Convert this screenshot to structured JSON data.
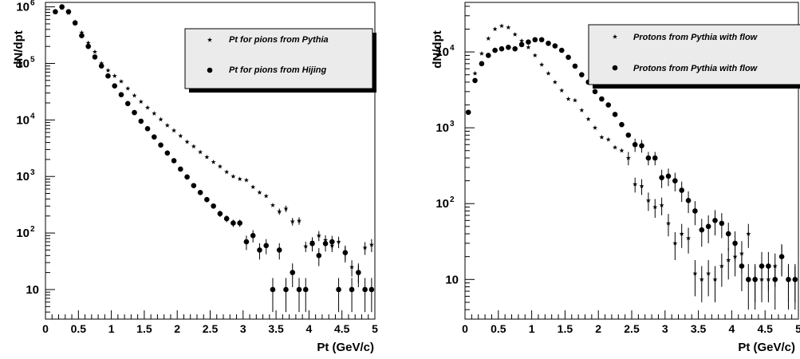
{
  "chart_data": [
    {
      "type": "scatter",
      "y_scale": "log",
      "xlim": [
        0,
        5
      ],
      "ylim": [
        3,
        1200000
      ],
      "xticks": [
        "0",
        "0.5",
        "1",
        "1.5",
        "2",
        "2.5",
        "3",
        "3.5",
        "4",
        "4.5",
        "5"
      ],
      "yticks": [
        {
          "v": 10,
          "label": "10"
        },
        {
          "v": 100,
          "label": "10",
          "exp": "2"
        },
        {
          "v": 1000,
          "label": "10",
          "exp": "3"
        },
        {
          "v": 10000,
          "label": "10",
          "exp": "4"
        },
        {
          "v": 100000,
          "label": "10",
          "exp": "5"
        },
        {
          "v": 1000000,
          "label": "10",
          "exp": "6"
        }
      ],
      "xlabel": "Pt (GeV/c)",
      "ylabel": "dN/dpt",
      "grid": false,
      "legend_position": "top-right",
      "series": [
        {
          "name": "Pt for pions from Pythia",
          "marker": "star",
          "x": [
            0.15,
            0.25,
            0.35,
            0.45,
            0.55,
            0.65,
            0.75,
            0.85,
            0.95,
            1.05,
            1.15,
            1.25,
            1.35,
            1.45,
            1.55,
            1.65,
            1.75,
            1.85,
            1.95,
            2.05,
            2.15,
            2.25,
            2.35,
            2.45,
            2.55,
            2.65,
            2.75,
            2.85,
            2.95,
            3.05,
            3.15,
            3.25,
            3.35,
            3.45,
            3.55,
            3.65,
            3.75,
            3.85,
            3.95,
            4.05,
            4.15,
            4.25,
            4.35,
            4.45,
            4.55,
            4.65,
            4.75,
            4.85,
            4.95
          ],
          "y": [
            800000,
            950000,
            780000,
            540000,
            350000,
            230000,
            160000,
            100000,
            75000,
            60000,
            48000,
            36000,
            27000,
            21000,
            16500,
            13000,
            10200,
            8000,
            6500,
            5200,
            4100,
            3400,
            2700,
            2200,
            1800,
            1500,
            1200,
            1000,
            900,
            860,
            650,
            520,
            450,
            310,
            240,
            270,
            160,
            165,
            58,
            70,
            90,
            75,
            60,
            70,
            45,
            25,
            20,
            55,
            62
          ],
          "yerr": [
            0,
            0,
            0,
            0,
            0,
            0,
            0,
            0,
            0,
            0,
            0,
            0,
            0,
            0,
            0,
            0,
            0,
            0,
            0,
            0,
            0,
            0,
            0,
            0,
            0,
            0,
            0,
            0,
            0,
            0,
            0,
            0,
            0,
            0,
            30,
            35,
            25,
            25,
            12,
            14,
            18,
            16,
            14,
            16,
            12,
            8,
            7,
            14,
            16
          ]
        },
        {
          "name": "Pt for pions from Hijing",
          "marker": "circle",
          "x": [
            0.15,
            0.25,
            0.35,
            0.45,
            0.55,
            0.65,
            0.75,
            0.85,
            0.95,
            1.05,
            1.15,
            1.25,
            1.35,
            1.45,
            1.55,
            1.65,
            1.75,
            1.85,
            1.95,
            2.05,
            2.15,
            2.25,
            2.35,
            2.45,
            2.55,
            2.65,
            2.75,
            2.85,
            2.95,
            3.05,
            3.15,
            3.25,
            3.35,
            3.45,
            3.55,
            3.65,
            3.75,
            3.85,
            3.95,
            4.05,
            4.15,
            4.25,
            4.35,
            4.45,
            4.55,
            4.65,
            4.75,
            4.85,
            4.95
          ],
          "y": [
            820000,
            1000000,
            820000,
            520000,
            310000,
            200000,
            130000,
            90000,
            60000,
            40000,
            28000,
            19500,
            13500,
            9500,
            7000,
            5000,
            3600,
            2600,
            1900,
            1350,
            980,
            690,
            520,
            390,
            300,
            220,
            180,
            150,
            150,
            70,
            90,
            50,
            60,
            10,
            50,
            10,
            20,
            10,
            10,
            65,
            40,
            65,
            70,
            10,
            45,
            10,
            20,
            10,
            10
          ],
          "yerr": [
            0,
            0,
            0,
            0,
            0,
            0,
            0,
            0,
            0,
            0,
            0,
            0,
            0,
            0,
            0,
            0,
            0,
            0,
            0,
            0,
            0,
            0,
            0,
            40,
            30,
            28,
            25,
            22,
            22,
            20,
            22,
            16,
            18,
            6,
            16,
            6,
            9,
            6,
            6,
            18,
            14,
            18,
            19,
            6,
            15,
            6,
            9,
            6,
            6
          ]
        }
      ]
    },
    {
      "type": "scatter",
      "y_scale": "log",
      "xlim": [
        0,
        5
      ],
      "ylim": [
        3,
        45000
      ],
      "xticks": [
        "0",
        "0.5",
        "1",
        "1.5",
        "2",
        "2.5",
        "3",
        "3.5",
        "4",
        "4.5",
        "5"
      ],
      "yticks": [
        {
          "v": 10,
          "label": "10"
        },
        {
          "v": 100,
          "label": "10",
          "exp": "2"
        },
        {
          "v": 1000,
          "label": "10",
          "exp": "3"
        },
        {
          "v": 10000,
          "label": "10",
          "exp": "4"
        }
      ],
      "xlabel": "Pt (GeV/c)",
      "ylabel": "dN/dpt",
      "grid": false,
      "legend_position": "top-right",
      "series": [
        {
          "name": "Protons from  Pythia with flow",
          "marker": "star",
          "x": [
            0.05,
            0.15,
            0.25,
            0.35,
            0.45,
            0.55,
            0.65,
            0.75,
            0.85,
            0.95,
            1.05,
            1.15,
            1.25,
            1.35,
            1.45,
            1.55,
            1.65,
            1.75,
            1.85,
            1.95,
            2.05,
            2.15,
            2.25,
            2.35,
            2.45,
            2.55,
            2.65,
            2.75,
            2.85,
            2.95,
            3.05,
            3.15,
            3.25,
            3.35,
            3.45,
            3.55,
            3.65,
            3.75,
            3.85,
            3.95,
            4.05,
            4.15,
            4.25,
            4.35,
            4.45,
            4.55,
            4.65,
            4.75,
            4.85,
            4.95
          ],
          "y": [
            1600,
            5200,
            9500,
            15000,
            20000,
            22000,
            21000,
            17000,
            14000,
            11500,
            9000,
            6800,
            5200,
            4000,
            3100,
            2400,
            2300,
            1700,
            1300,
            1000,
            750,
            700,
            550,
            500,
            400,
            180,
            170,
            110,
            90,
            95,
            55,
            30,
            40,
            35,
            12,
            10,
            12,
            10,
            15,
            18,
            20,
            22,
            40,
            10,
            10,
            10,
            15,
            20,
            10,
            10
          ],
          "yerr": [
            0,
            0,
            0,
            0,
            0,
            0,
            0,
            0,
            0,
            0,
            0,
            0,
            0,
            0,
            0,
            0,
            0,
            0,
            0,
            0,
            0,
            0,
            0,
            0,
            80,
            40,
            40,
            30,
            25,
            25,
            18,
            12,
            14,
            13,
            6,
            5,
            6,
            5,
            7,
            8,
            9,
            10,
            14,
            5,
            5,
            5,
            7,
            9,
            5,
            5
          ]
        },
        {
          "name": "Protons from Pythia with flow",
          "marker": "circle",
          "x": [
            0.05,
            0.15,
            0.25,
            0.35,
            0.45,
            0.55,
            0.65,
            0.75,
            0.85,
            0.95,
            1.05,
            1.15,
            1.25,
            1.35,
            1.45,
            1.55,
            1.65,
            1.75,
            1.85,
            1.95,
            2.05,
            2.15,
            2.25,
            2.35,
            2.45,
            2.55,
            2.65,
            2.75,
            2.85,
            2.95,
            3.05,
            3.15,
            3.25,
            3.35,
            3.45,
            3.55,
            3.65,
            3.75,
            3.85,
            3.95,
            4.05,
            4.15,
            4.25,
            4.35,
            4.45,
            4.55,
            4.65,
            4.75,
            4.85,
            4.95
          ],
          "y": [
            1600,
            4200,
            7000,
            9000,
            10500,
            11000,
            11500,
            11000,
            12500,
            13500,
            14500,
            14500,
            13000,
            12000,
            10500,
            8500,
            6500,
            5000,
            4000,
            3000,
            2400,
            2000,
            1500,
            1100,
            800,
            600,
            580,
            400,
            400,
            220,
            230,
            200,
            150,
            110,
            80,
            45,
            50,
            60,
            55,
            40,
            30,
            15,
            10,
            10,
            15,
            15,
            10,
            20,
            10,
            10
          ],
          "yerr": [
            0,
            0,
            0,
            0,
            0,
            0,
            0,
            0,
            0,
            0,
            0,
            0,
            0,
            0,
            0,
            0,
            0,
            0,
            0,
            0,
            0,
            0,
            0,
            0,
            0,
            120,
            110,
            80,
            80,
            60,
            60,
            55,
            45,
            35,
            28,
            18,
            20,
            22,
            20,
            16,
            13,
            8,
            6,
            6,
            8,
            8,
            6,
            9,
            6,
            6
          ]
        }
      ]
    }
  ]
}
